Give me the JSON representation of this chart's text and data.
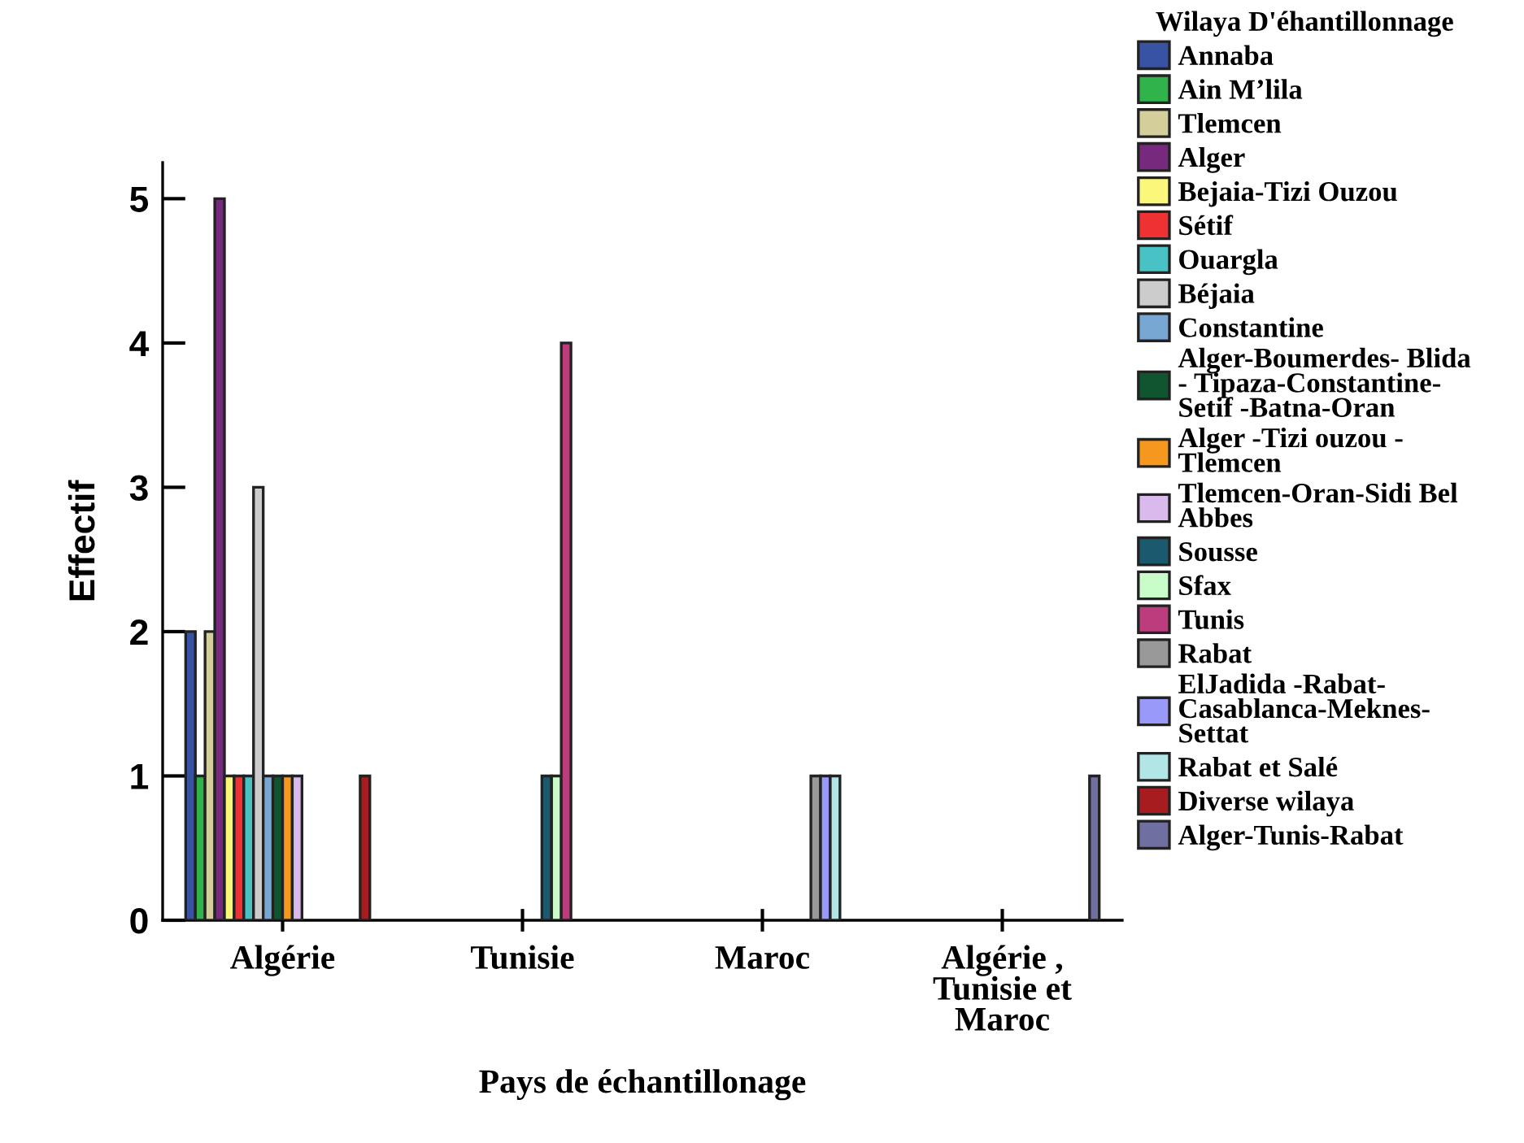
{
  "chart_data": {
    "type": "bar",
    "xlabel": "Pays de échantillonage",
    "ylabel": "Effectif",
    "legend_title": "Wilaya D'éhantillonnage",
    "categories": [
      "Algérie",
      "Tunisie",
      "Maroc",
      "Algérie ,\nTunisie et\nMaroc"
    ],
    "ylim": [
      0,
      5.25
    ],
    "yticks": [
      0,
      1,
      2,
      3,
      4,
      5
    ],
    "grid": false,
    "legend": "right",
    "series": [
      {
        "name": "Annaba",
        "color": "#3953a4",
        "values": [
          2,
          null,
          null,
          null
        ]
      },
      {
        "name": "Ain M’lila",
        "color": "#2fb34a",
        "values": [
          1,
          null,
          null,
          null
        ]
      },
      {
        "name": "Tlemcen",
        "color": "#d4cf9a",
        "values": [
          2,
          null,
          null,
          null
        ]
      },
      {
        "name": "Alger",
        "color": "#772a7d",
        "values": [
          5,
          null,
          null,
          null
        ]
      },
      {
        "name": "Bejaia-Tizi Ouzou",
        "color": "#fbf77a",
        "values": [
          1,
          null,
          null,
          null
        ]
      },
      {
        "name": "Sétif",
        "color": "#ee3234",
        "values": [
          1,
          null,
          null,
          null
        ]
      },
      {
        "name": "Ouargla",
        "color": "#48c2c5",
        "values": [
          1,
          null,
          null,
          null
        ]
      },
      {
        "name": "Béjaia",
        "color": "#cccccc",
        "values": [
          3,
          null,
          null,
          null
        ]
      },
      {
        "name": "Constantine",
        "color": "#79a7d4",
        "values": [
          1,
          null,
          null,
          null
        ]
      },
      {
        "name": "Alger-Boumerdes- Blida\n- Tipaza-Constantine-\nSetif -Batna-Oran",
        "color": "#0e5530",
        "values": [
          1,
          null,
          null,
          null
        ]
      },
      {
        "name": "Alger -Tizi ouzou -\nTlemcen",
        "color": "#f6981e",
        "values": [
          1,
          null,
          null,
          null
        ]
      },
      {
        "name": "Tlemcen-Oran-Sidi Bel\nAbbes",
        "color": "#dabaec",
        "values": [
          1,
          null,
          null,
          null
        ]
      },
      {
        "name": "Sousse",
        "color": "#1b5a6e",
        "values": [
          null,
          1,
          null,
          null
        ]
      },
      {
        "name": "Sfax",
        "color": "#c8fcc8",
        "values": [
          null,
          1,
          null,
          null
        ]
      },
      {
        "name": "Tunis",
        "color": "#bd3c7e",
        "values": [
          null,
          4,
          null,
          null
        ]
      },
      {
        "name": "Rabat",
        "color": "#999999",
        "values": [
          null,
          null,
          1,
          null
        ]
      },
      {
        "name": "ElJadida -Rabat-\nCasablanca-Meknes-\nSettat",
        "color": "#9999f9",
        "values": [
          null,
          null,
          1,
          null
        ]
      },
      {
        "name": "Rabat et Salé",
        "color": "#b2e5e5",
        "values": [
          null,
          null,
          1,
          null
        ]
      },
      {
        "name": "Diverse wilaya",
        "color": "#a61c1f",
        "values": [
          1,
          null,
          null,
          null
        ]
      },
      {
        "name": "Alger-Tunis-Rabat",
        "color": "#6f6fa1",
        "values": [
          null,
          null,
          null,
          1
        ]
      }
    ]
  }
}
